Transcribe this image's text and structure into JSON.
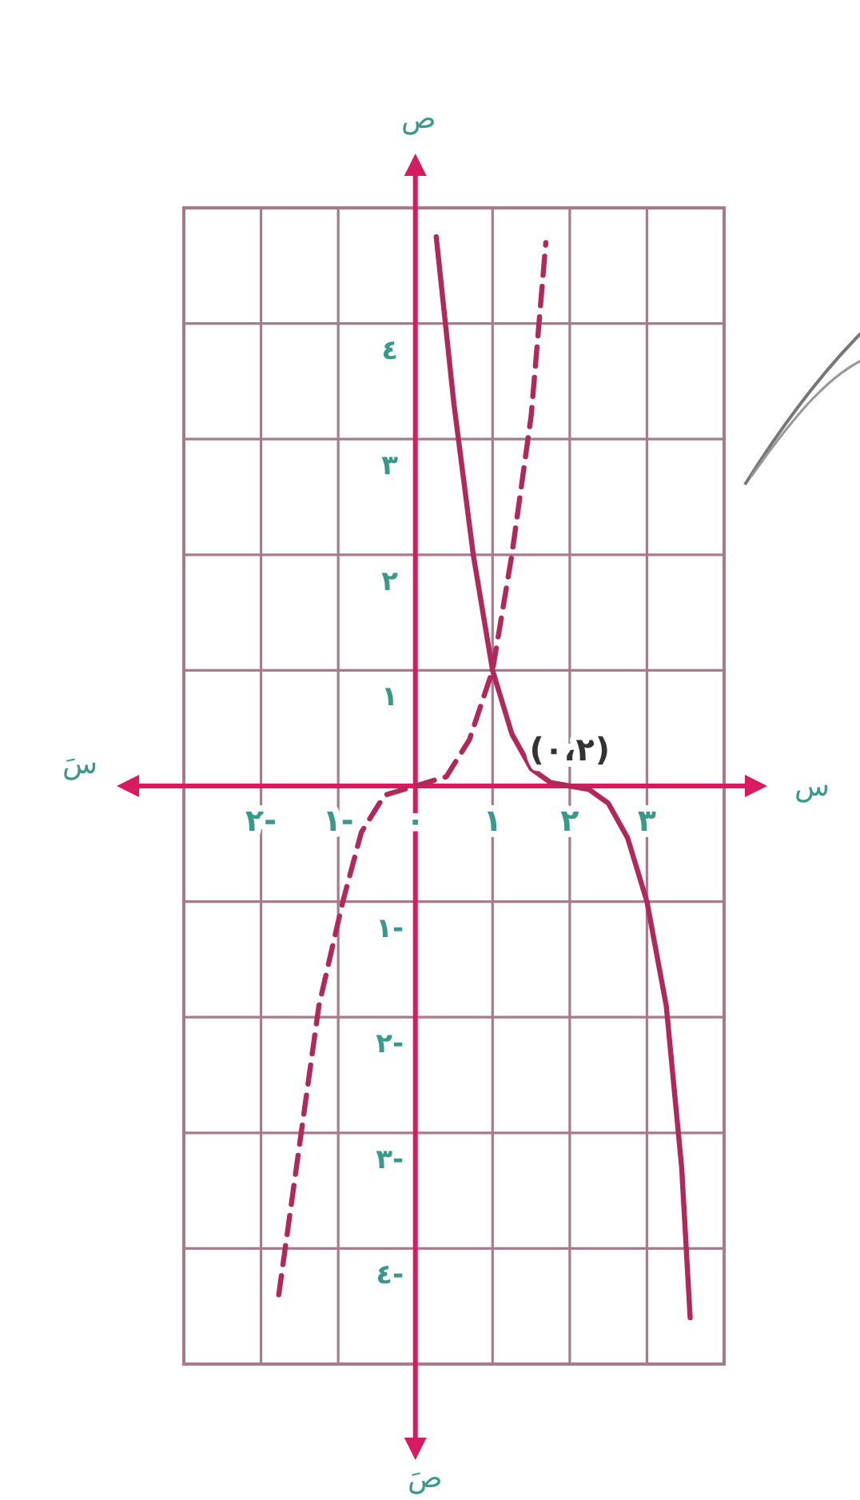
{
  "chart_data": {
    "type": "line",
    "xlabel": "س",
    "ylabel": "ص",
    "annotations": [
      "سَ",
      "صَ",
      {
        "text": "(٠،٢)",
        "x": 2,
        "y": 0
      }
    ],
    "xlim": [
      -3,
      4
    ],
    "ylim": [
      -5,
      5
    ],
    "xticks": [
      {
        "value": -3,
        "label": null
      },
      {
        "value": -2,
        "label": "٢-"
      },
      {
        "value": -1,
        "label": "١-"
      },
      {
        "value": 0,
        "label": "٠"
      },
      {
        "value": 1,
        "label": "١"
      },
      {
        "value": 2,
        "label": "٢"
      },
      {
        "value": 3,
        "label": "٣"
      },
      {
        "value": 4,
        "label": null
      }
    ],
    "yticks": [
      {
        "value": -5,
        "label": null
      },
      {
        "value": -4,
        "label": "٤-"
      },
      {
        "value": -3,
        "label": "٣-"
      },
      {
        "value": -2,
        "label": "٢-"
      },
      {
        "value": -1,
        "label": "١-"
      },
      {
        "value": 0,
        "label": null
      },
      {
        "value": 1,
        "label": "١"
      },
      {
        "value": 2,
        "label": "٢"
      },
      {
        "value": 3,
        "label": "٣"
      },
      {
        "value": 4,
        "label": "٤"
      },
      {
        "value": 5,
        "label": null
      }
    ],
    "grid": true,
    "marker": "none",
    "series": [
      {
        "color": "#b3285a",
        "line_style": "solid",
        "x": [
          0.27,
          0.5,
          0.75,
          1,
          1.25,
          1.5,
          1.75,
          2,
          2.25,
          2.5,
          2.75,
          3,
          3.25,
          3.45,
          3.56
        ],
        "values": [
          4.75,
          3.3,
          2.0,
          1,
          0.45,
          0.15,
          0.03,
          0,
          -0.03,
          -0.15,
          -0.45,
          -1,
          -1.9,
          -3.3,
          -4.6
        ]
      },
      {
        "color": "#b3285a",
        "line_style": "dashed",
        "x": [
          -1.77,
          -1.5,
          -1.25,
          -0.94,
          -0.7,
          -0.4,
          0,
          0.4,
          0.7,
          1,
          1.25,
          1.5,
          1.69
        ],
        "values": [
          -4.4,
          -3.1,
          -1.9,
          -1,
          -0.4,
          -0.08,
          0,
          0.08,
          0.4,
          1,
          2.0,
          3.2,
          4.7
        ]
      }
    ]
  }
}
